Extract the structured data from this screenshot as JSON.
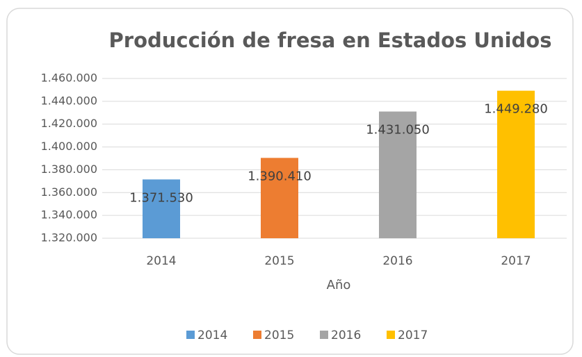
{
  "chart_data": {
    "type": "bar",
    "title": "Producción de fresa en Estados Unidos",
    "x_label": "Año",
    "categories": [
      "2014",
      "2015",
      "2016",
      "2017"
    ],
    "values": [
      1371530,
      1390410,
      1431050,
      1449280
    ],
    "value_labels": [
      "1.371.530",
      "1.390.410",
      "1.431.050",
      "1.449.280"
    ],
    "colors": [
      "#5b9bd5",
      "#ed7d31",
      "#a5a5a5",
      "#ffc000"
    ],
    "ylim": [
      1320000,
      1460000
    ],
    "yticks": [
      {
        "value": 1320000,
        "label": "1.320.000"
      },
      {
        "value": 1340000,
        "label": "1.340.000"
      },
      {
        "value": 1360000,
        "label": "1.360.000"
      },
      {
        "value": 1380000,
        "label": "1.380.000"
      },
      {
        "value": 1400000,
        "label": "1.400.000"
      },
      {
        "value": 1420000,
        "label": "1.420.000"
      },
      {
        "value": 1440000,
        "label": "1.440.000"
      },
      {
        "value": 1460000,
        "label": "1.460.000"
      }
    ],
    "grid": true,
    "legend": "bottom"
  }
}
